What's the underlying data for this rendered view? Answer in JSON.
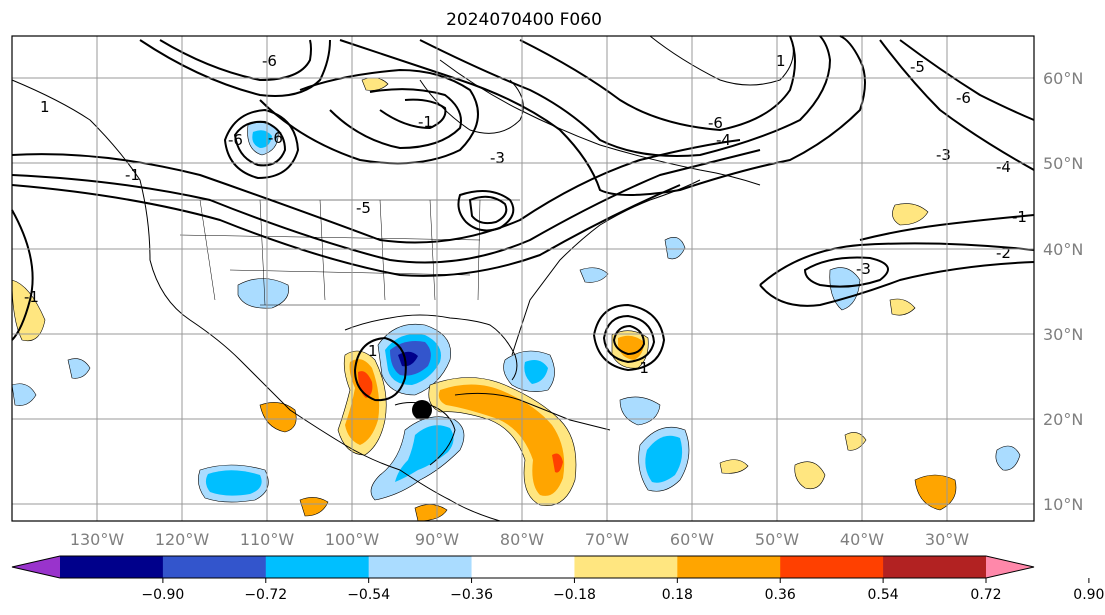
{
  "title": "2024070400 F060",
  "map": {
    "lon_labels": [
      "130°W",
      "120°W",
      "110°W",
      "100°W",
      "90°W",
      "80°W",
      "70°W",
      "60°W",
      "50°W",
      "40°W",
      "30°W"
    ],
    "lat_labels": [
      "60°N",
      "50°N",
      "40°N",
      "30°N",
      "20°N",
      "10°N"
    ],
    "contour_labels": [
      "-6",
      "-6",
      "-6",
      "1",
      "-1",
      "-5",
      "-3",
      "-6",
      "-1",
      "-4",
      "-6",
      "-5",
      "-3",
      "-4",
      "-1",
      "-2",
      "-3",
      "-1",
      "1",
      "-1",
      "1"
    ],
    "storm_marker": "black dot",
    "grid": true
  },
  "colorbar": {
    "ticks": [
      "−0.90",
      "−0.72",
      "−0.54",
      "−0.36",
      "−0.18",
      "0.18",
      "0.36",
      "0.54",
      "0.72",
      "0.90"
    ],
    "colors": [
      "#9933cc",
      "#00008b",
      "#3355cc",
      "#00bfff",
      "#aadcff",
      "#ffffff",
      "#ffe680",
      "#ffa500",
      "#ff4000",
      "#b22222",
      "#ff88aa"
    ],
    "extend": "both"
  }
}
